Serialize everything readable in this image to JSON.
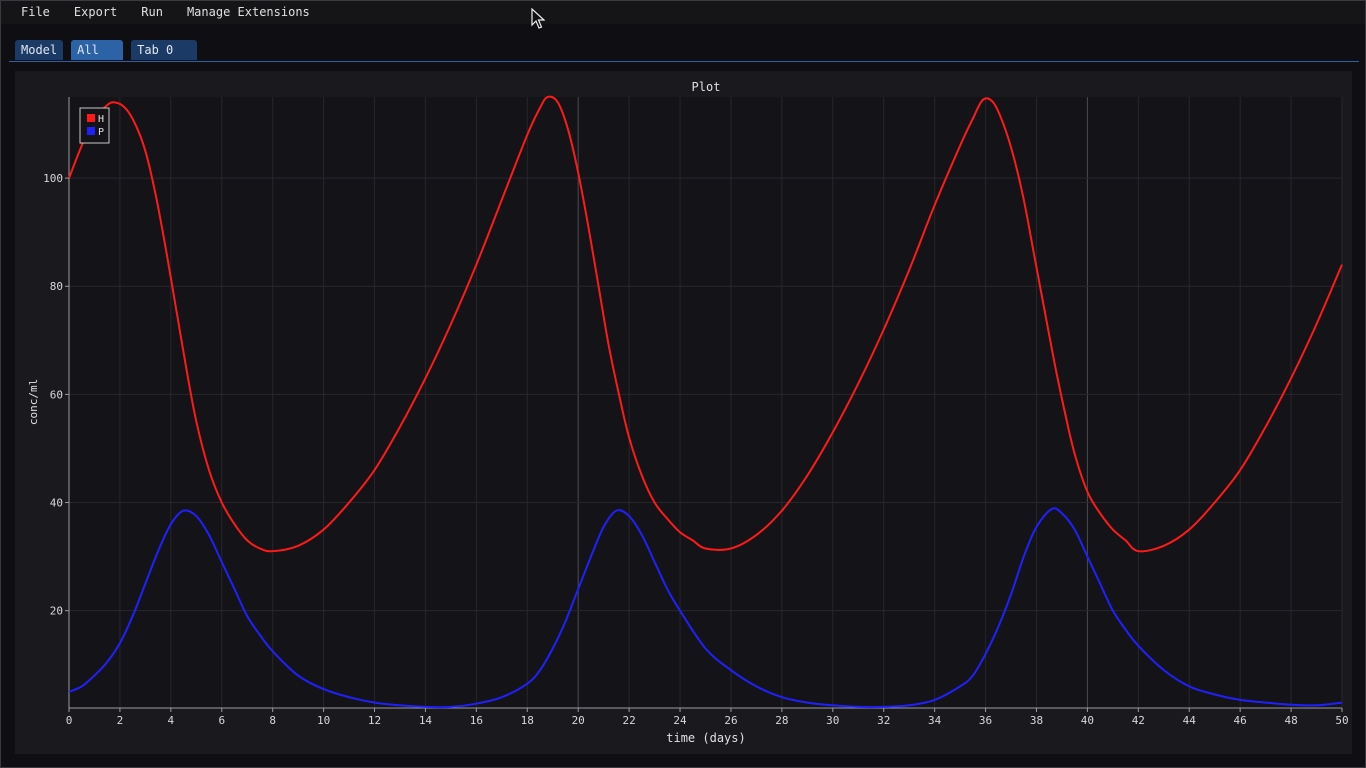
{
  "menu": {
    "items": [
      {
        "label": "File"
      },
      {
        "label": "Export"
      },
      {
        "label": "Run"
      },
      {
        "label": "Manage Extensions"
      }
    ]
  },
  "tabs": [
    {
      "label": "Model",
      "active": false
    },
    {
      "label": "All",
      "active": true
    },
    {
      "label": "Tab 0",
      "active": false
    }
  ],
  "plot": {
    "title": "Plot",
    "colors": {
      "H": "#ff1a1a",
      "P": "#2020ff",
      "background": "#141418",
      "frame": "#1a1a1e"
    }
  },
  "chart_data": {
    "type": "line",
    "title": "Plot",
    "xlabel": "time (days)",
    "ylabel": "conc/ml",
    "xlim": [
      0,
      50
    ],
    "ylim": [
      2,
      115
    ],
    "xticks": [
      0,
      2,
      4,
      6,
      8,
      10,
      12,
      14,
      16,
      18,
      20,
      22,
      24,
      26,
      28,
      30,
      32,
      34,
      36,
      38,
      40,
      42,
      44,
      46,
      48,
      50
    ],
    "yticks": [
      20,
      40,
      60,
      80,
      100
    ],
    "grid": true,
    "legend_position": "top-left",
    "series": [
      {
        "name": "H",
        "color": "#ff1a1a",
        "x": [
          0,
          0.5,
          1,
          1.5,
          1.8,
          2.2,
          2.6,
          3,
          3.4,
          3.8,
          4.2,
          4.6,
          5,
          5.5,
          6,
          6.5,
          7,
          7.5,
          8,
          9,
          10,
          11,
          12,
          13,
          14,
          15,
          16,
          17,
          18,
          18.5,
          18.8,
          19.2,
          19.6,
          20,
          20.4,
          20.8,
          21.2,
          21.6,
          22,
          22.5,
          23,
          23.5,
          24,
          24.5,
          25,
          26,
          27,
          28,
          29,
          30,
          31,
          32,
          33,
          34,
          35,
          35.5,
          35.9,
          36.3,
          36.7,
          37.1,
          37.5,
          37.9,
          38.3,
          38.7,
          39.1,
          39.5,
          40,
          40.5,
          41,
          41.5,
          42,
          43,
          44,
          45,
          46,
          47,
          48,
          49,
          50
        ],
        "y": [
          100,
          106,
          111,
          113.5,
          114,
          113,
          110,
          105,
          97,
          87,
          76,
          65,
          55,
          46,
          40,
          36,
          33,
          31.5,
          31,
          32,
          35,
          40,
          46,
          54,
          63,
          73,
          84,
          96,
          108,
          113,
          115,
          114,
          109,
          101,
          91,
          80,
          69,
          60,
          52,
          45,
          40,
          37,
          34.5,
          33,
          31.5,
          31.5,
          34,
          38.5,
          45,
          53,
          62,
          72,
          83,
          95,
          106,
          111,
          114.5,
          114,
          110,
          104,
          96,
          86,
          76,
          66,
          57,
          49,
          42,
          38,
          35,
          33,
          31,
          32,
          35,
          40,
          46,
          54,
          63,
          73,
          84
        ]
      },
      {
        "name": "P",
        "color": "#2020ff",
        "x": [
          0,
          0.5,
          1,
          1.5,
          2,
          2.5,
          3,
          3.5,
          4,
          4.5,
          5,
          5.5,
          6,
          6.5,
          7,
          7.5,
          8,
          9,
          10,
          11,
          12,
          13,
          14,
          15,
          16,
          17,
          18,
          18.5,
          19,
          19.5,
          20,
          20.5,
          21,
          21.5,
          22,
          22.5,
          23,
          23.5,
          24,
          25,
          26,
          27,
          28,
          29,
          30,
          31,
          32,
          33,
          34,
          35,
          35.5,
          36,
          36.5,
          37,
          37.5,
          38,
          38.6,
          39,
          39.5,
          40,
          40.5,
          41,
          41.5,
          42,
          43,
          44,
          45,
          46,
          47,
          48,
          49,
          50
        ],
        "y": [
          5,
          6,
          8,
          10.5,
          14,
          19,
          25,
          31,
          36,
          38.5,
          37.5,
          34,
          29,
          24,
          19,
          15.5,
          12.5,
          8,
          5.5,
          4,
          3,
          2.5,
          2.2,
          2.2,
          2.8,
          4,
          6.5,
          9,
          13,
          18,
          24,
          30,
          35.5,
          38.5,
          37.5,
          34,
          29,
          24,
          20,
          13,
          9,
          6,
          4,
          3,
          2.5,
          2.2,
          2.2,
          2.5,
          3.5,
          6,
          8,
          12,
          17,
          23,
          30,
          35.5,
          38.8,
          38,
          35,
          30,
          25,
          20,
          16.5,
          13.5,
          9,
          6,
          4.5,
          3.5,
          3,
          2.6,
          2.5,
          3
        ]
      }
    ]
  }
}
